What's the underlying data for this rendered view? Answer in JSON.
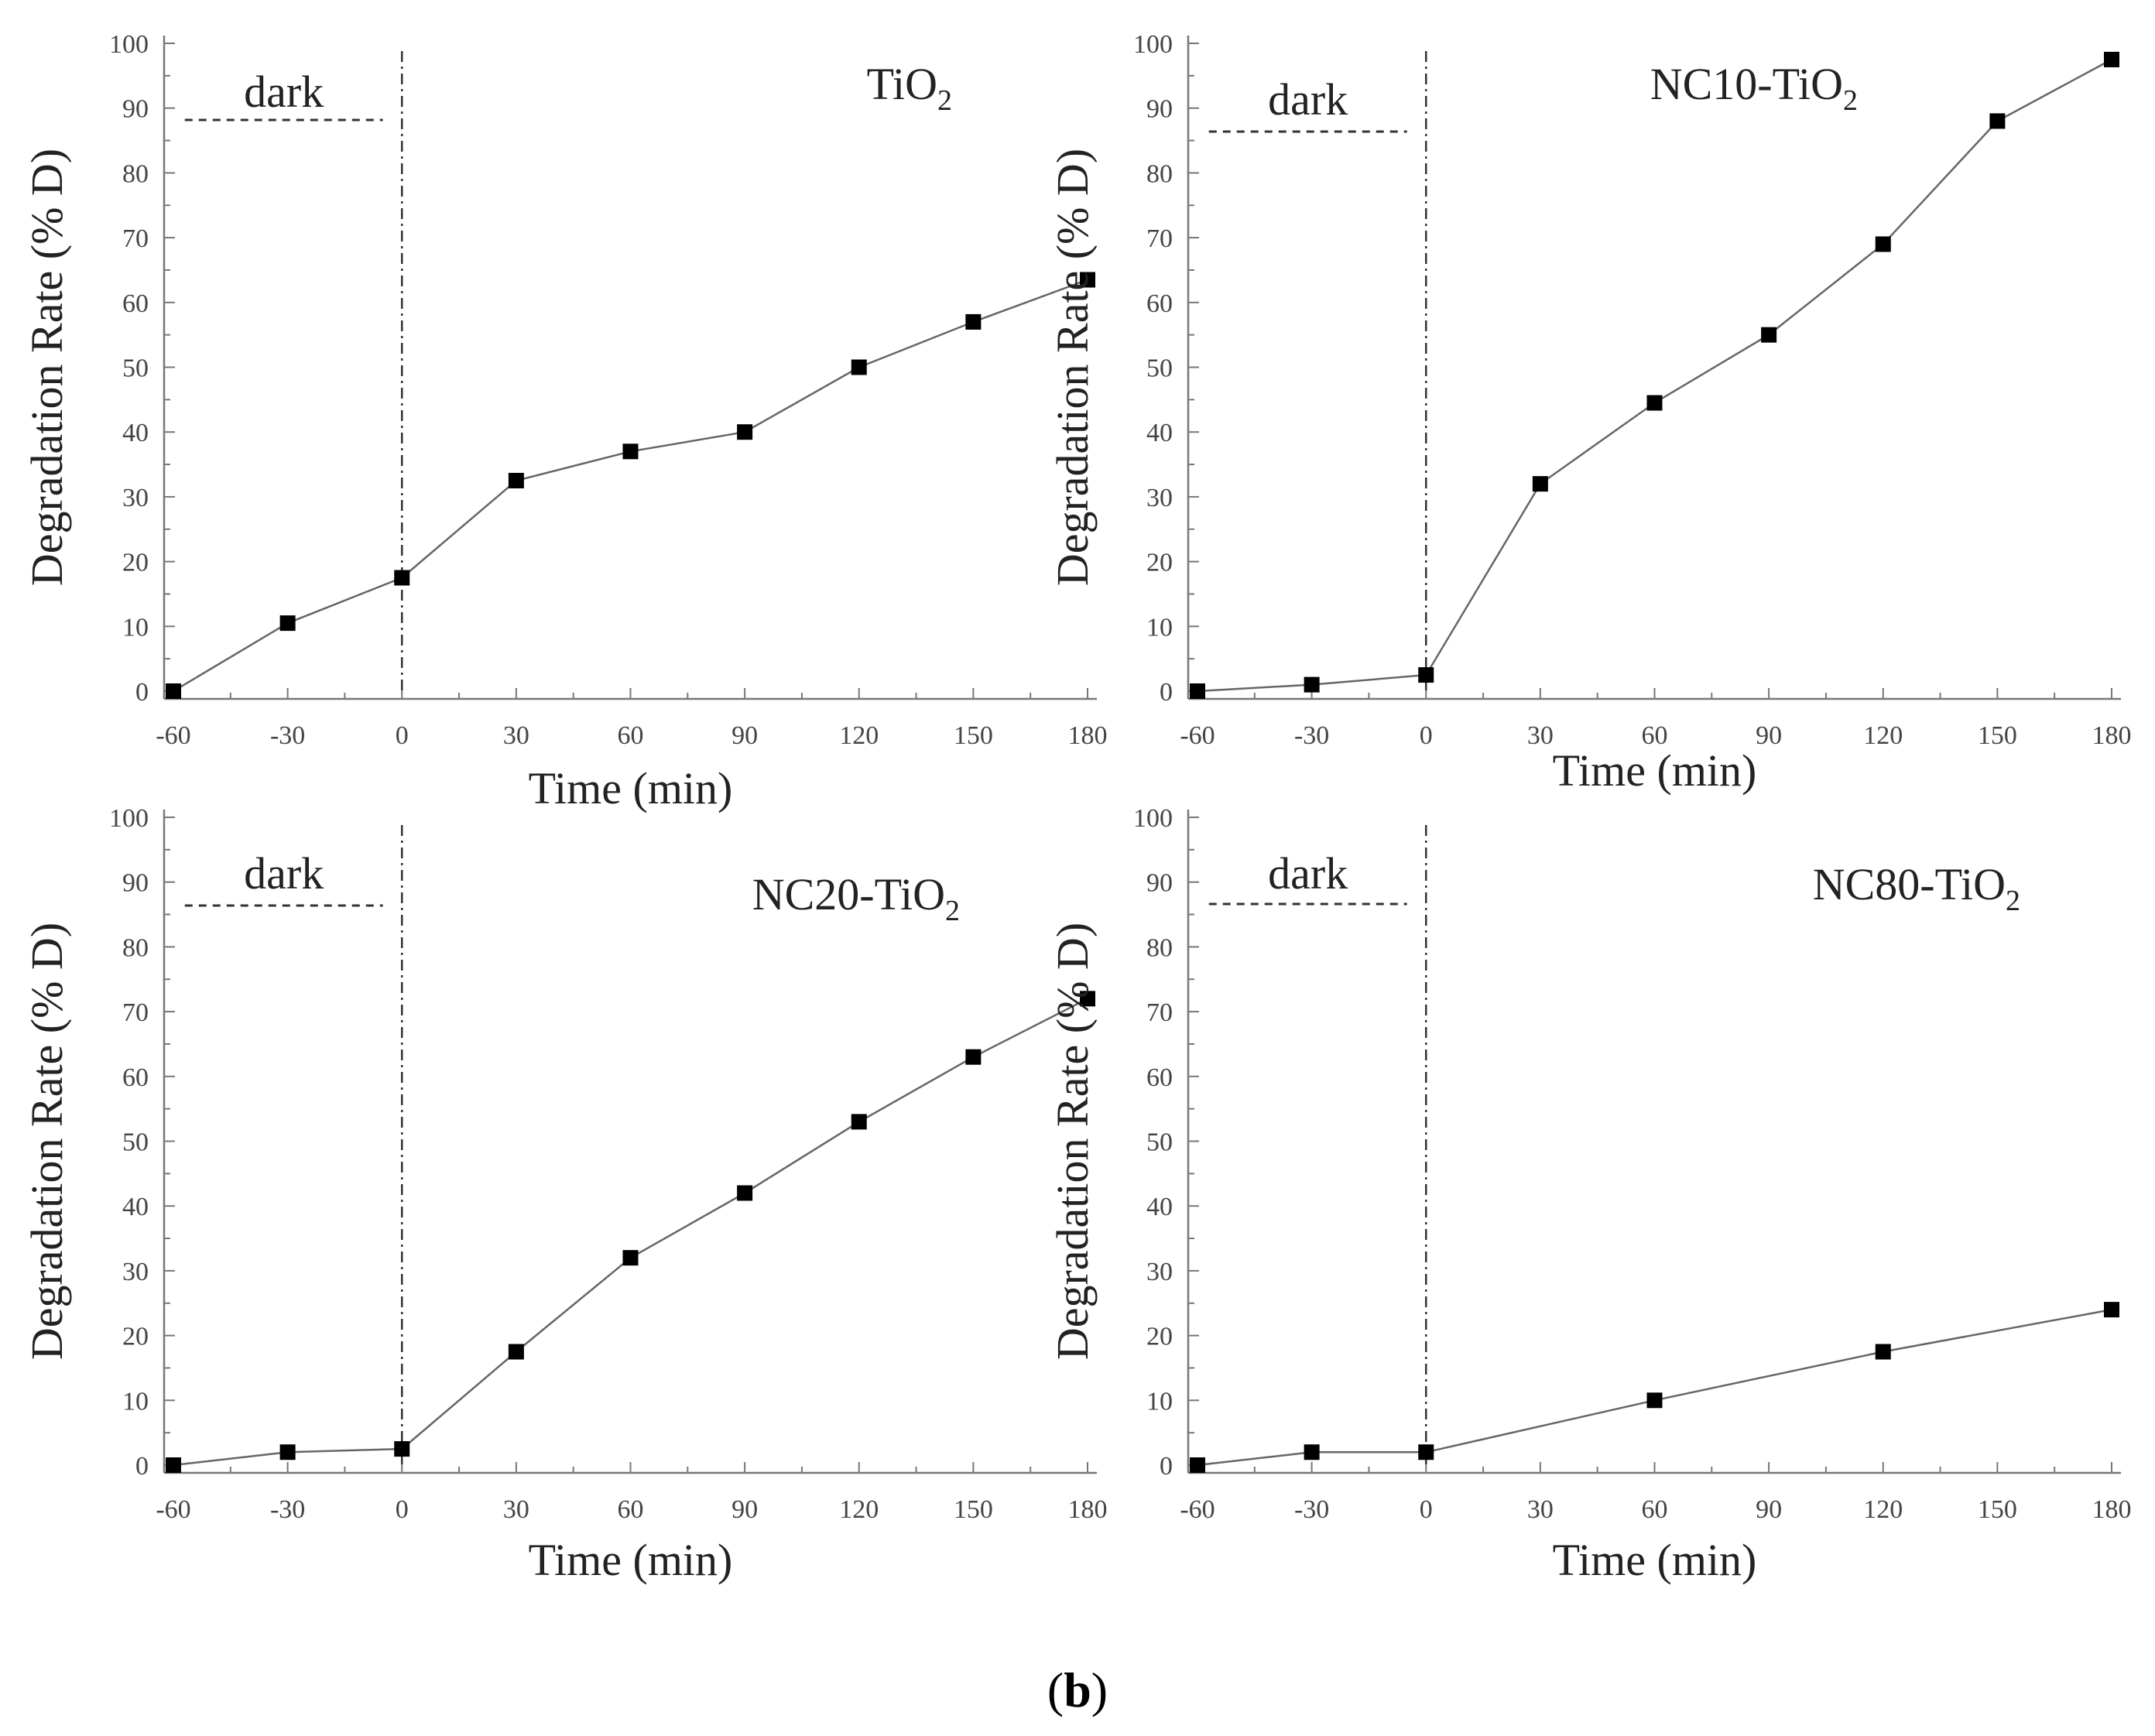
{
  "caption": {
    "open": "(",
    "letter": "b",
    "close": ")"
  },
  "chart_data": [
    {
      "type": "line",
      "title_main": "TiO",
      "title_sub": "2",
      "dark_label": "dark",
      "xlabel": "Time (min)",
      "ylabel": "Degradation Rate (% D)",
      "xlim": [
        -60,
        180
      ],
      "ylim": [
        0,
        100
      ],
      "x": [
        -60,
        -30,
        0,
        30,
        60,
        90,
        120,
        150,
        180
      ],
      "values": [
        0,
        10.5,
        17.5,
        32.5,
        37,
        40,
        50,
        57,
        63.5
      ],
      "dark_divider_x": 0
    },
    {
      "type": "line",
      "title_main": "NC10-TiO",
      "title_sub": "2",
      "dark_label": "dark",
      "xlabel": "Time (min)",
      "ylabel": "Degradation Rate (% D)",
      "xlim": [
        -60,
        180
      ],
      "ylim": [
        0,
        100
      ],
      "x": [
        -60,
        -30,
        0,
        30,
        60,
        90,
        120,
        150,
        180
      ],
      "values": [
        0,
        1,
        2.5,
        32,
        44.5,
        55,
        69,
        88,
        97.5
      ],
      "dark_divider_x": 0
    },
    {
      "type": "line",
      "title_main": "NC20-TiO",
      "title_sub": "2",
      "dark_label": "dark",
      "xlabel": "Time (min)",
      "ylabel": "Degradation Rate (% D)",
      "xlim": [
        -60,
        180
      ],
      "ylim": [
        0,
        100
      ],
      "x": [
        -60,
        -30,
        0,
        30,
        60,
        90,
        120,
        150,
        180
      ],
      "values": [
        0,
        2,
        2.5,
        17.5,
        32,
        42,
        53,
        63,
        72
      ],
      "dark_divider_x": 0
    },
    {
      "type": "line",
      "title_main": "NC80-TiO",
      "title_sub": "2",
      "dark_label": "dark",
      "xlabel": "Time (min)",
      "ylabel": "Degradation Rate (% D)",
      "xlim": [
        -60,
        180
      ],
      "ylim": [
        0,
        100
      ],
      "x": [
        -60,
        -30,
        0,
        60,
        120,
        180
      ],
      "values": [
        0,
        2,
        2,
        10,
        17.5,
        24
      ],
      "dark_divider_x": 0
    }
  ]
}
